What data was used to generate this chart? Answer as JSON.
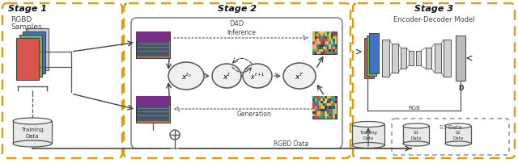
{
  "stage1_title": "Stage 1",
  "stage2_title": "Stage 2",
  "stage3_title": "Stage 3",
  "stage2_label": "D4D",
  "stage3_label": "Encoder-Decoder Model",
  "stage1_sublabel1": "RGBD",
  "stage1_sublabel2": "Samples",
  "inference_label": "Inference",
  "generation_label": "Generation",
  "rgb_label": "RGB",
  "d_label": "D",
  "rgbd_label": "RGBD Data",
  "s3data_label": "S3 Data",
  "training_label1": "Training",
  "training_label2": "Data",
  "s1_label1": "S1",
  "s1_label2": "Data",
  "s2_label1": "S2",
  "s2_label2": "Data",
  "training2_label1": "Training",
  "training2_label2": "Data",
  "bg_color": "#ffffff",
  "outer_box_color": "#d4a017",
  "inner_box_color": "#aaaaaa",
  "arrow_color": "#444444",
  "text_color": "#333333"
}
